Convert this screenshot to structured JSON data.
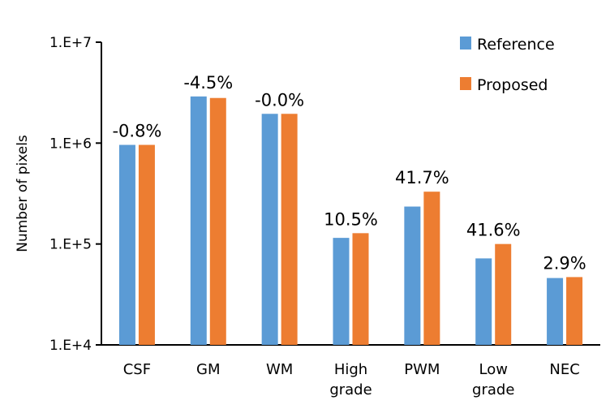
{
  "chart_data": {
    "type": "bar",
    "title": "",
    "xlabel": "",
    "ylabel": "Number of pixels",
    "yscale": "log",
    "ylim": [
      10000,
      10000000
    ],
    "yticks": [
      10000,
      100000,
      1000000,
      10000000
    ],
    "ytick_labels": [
      "1.E+4",
      "1.E+5",
      "1.E+6",
      "1.E+7"
    ],
    "categories": [
      [
        "CSF"
      ],
      [
        "GM"
      ],
      [
        "WM"
      ],
      [
        "High",
        "grade"
      ],
      [
        "PWM"
      ],
      [
        "Low",
        "grade"
      ],
      [
        "NEC"
      ]
    ],
    "series": [
      {
        "name": "Reference",
        "color": "#5b9bd5",
        "values": [
          960000,
          2900000,
          1950000,
          115000,
          235000,
          72000,
          46000
        ]
      },
      {
        "name": "Proposed",
        "color": "#ed7d31",
        "values": [
          960000,
          2800000,
          1950000,
          128000,
          330000,
          100000,
          47000
        ]
      }
    ],
    "annotations": [
      "-0.8%",
      "-4.5%",
      "-0.0%",
      "10.5%",
      "41.7%",
      "41.6%",
      "2.9%"
    ],
    "legend": {
      "position": "top-right",
      "entries": [
        "Reference",
        "Proposed"
      ]
    },
    "grid": false
  }
}
